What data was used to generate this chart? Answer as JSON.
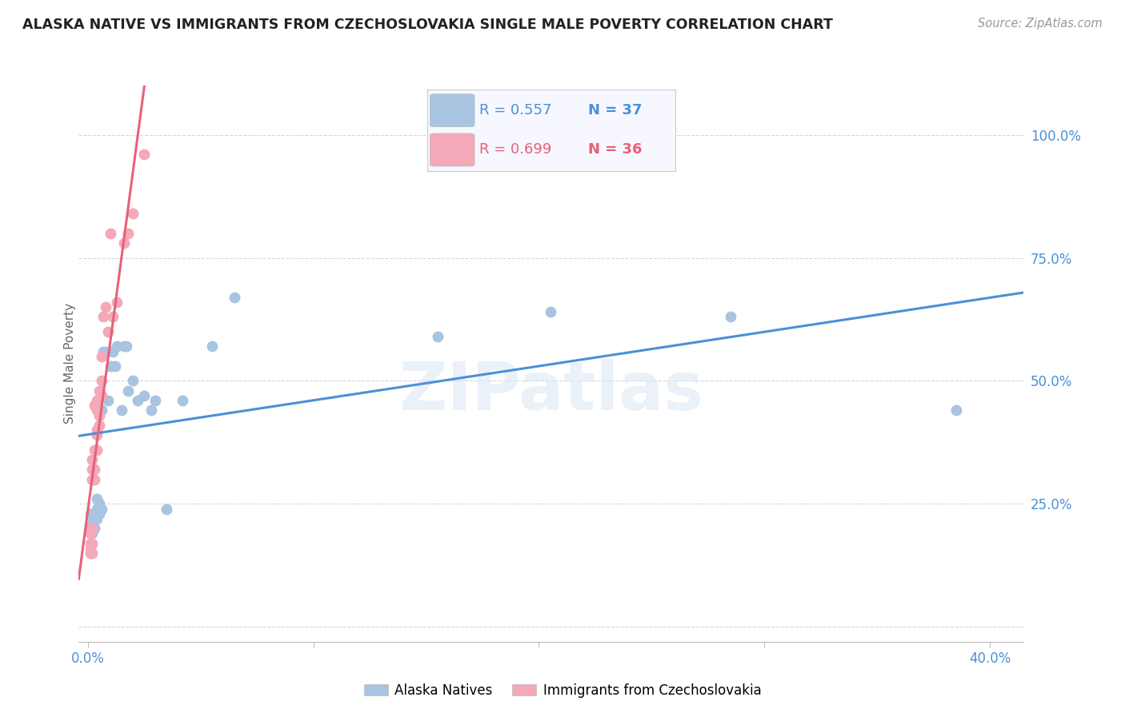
{
  "title": "ALASKA NATIVE VS IMMIGRANTS FROM CZECHOSLOVAKIA SINGLE MALE POVERTY CORRELATION CHART",
  "source": "Source: ZipAtlas.com",
  "ylabel": "Single Male Poverty",
  "y_ticks": [
    0.0,
    0.25,
    0.5,
    0.75,
    1.0
  ],
  "y_tick_labels": [
    "",
    "25.0%",
    "50.0%",
    "75.0%",
    "100.0%"
  ],
  "x_ticks": [
    0.0,
    0.1,
    0.2,
    0.3,
    0.4
  ],
  "xlim": [
    -0.004,
    0.415
  ],
  "ylim": [
    -0.03,
    1.1
  ],
  "alaska_color": "#a8c4e0",
  "czech_color": "#f4a8b8",
  "alaska_line_color": "#4a90d9",
  "czech_line_color": "#e8607a",
  "R_alaska": 0.557,
  "N_alaska": 37,
  "R_czech": 0.699,
  "N_czech": 36,
  "alaska_x": [
    0.001,
    0.001,
    0.002,
    0.002,
    0.003,
    0.003,
    0.004,
    0.004,
    0.004,
    0.005,
    0.005,
    0.006,
    0.006,
    0.007,
    0.008,
    0.009,
    0.01,
    0.011,
    0.012,
    0.013,
    0.015,
    0.016,
    0.017,
    0.018,
    0.02,
    0.022,
    0.025,
    0.028,
    0.03,
    0.035,
    0.042,
    0.055,
    0.065,
    0.155,
    0.205,
    0.285,
    0.385
  ],
  "alaska_y": [
    0.2,
    0.23,
    0.19,
    0.21,
    0.2,
    0.22,
    0.24,
    0.26,
    0.22,
    0.23,
    0.25,
    0.44,
    0.24,
    0.56,
    0.56,
    0.46,
    0.53,
    0.56,
    0.53,
    0.57,
    0.44,
    0.57,
    0.57,
    0.48,
    0.5,
    0.46,
    0.47,
    0.44,
    0.46,
    0.24,
    0.46,
    0.57,
    0.67,
    0.59,
    0.64,
    0.63,
    0.44
  ],
  "czech_x": [
    0.001,
    0.001,
    0.001,
    0.001,
    0.001,
    0.002,
    0.002,
    0.002,
    0.002,
    0.002,
    0.002,
    0.003,
    0.003,
    0.003,
    0.003,
    0.004,
    0.004,
    0.004,
    0.004,
    0.004,
    0.005,
    0.005,
    0.005,
    0.006,
    0.006,
    0.006,
    0.007,
    0.008,
    0.009,
    0.01,
    0.011,
    0.013,
    0.016,
    0.018,
    0.02,
    0.025
  ],
  "czech_y": [
    0.15,
    0.16,
    0.17,
    0.19,
    0.2,
    0.15,
    0.17,
    0.2,
    0.3,
    0.32,
    0.34,
    0.3,
    0.32,
    0.36,
    0.45,
    0.36,
    0.39,
    0.4,
    0.44,
    0.46,
    0.41,
    0.43,
    0.48,
    0.47,
    0.5,
    0.55,
    0.63,
    0.65,
    0.6,
    0.8,
    0.63,
    0.66,
    0.78,
    0.8,
    0.84,
    0.96
  ],
  "watermark": "ZIPatlas",
  "background_color": "#ffffff",
  "grid_color": "#d0d8e8"
}
